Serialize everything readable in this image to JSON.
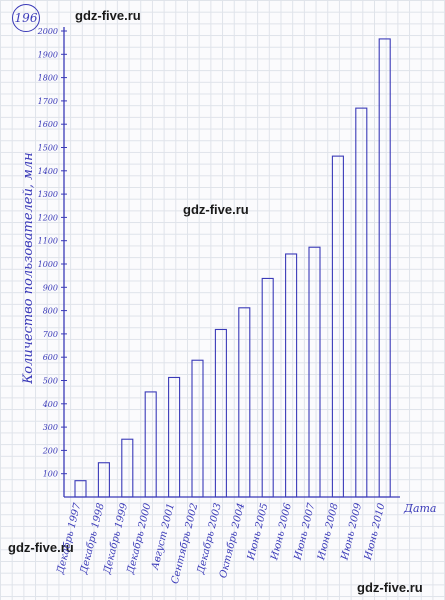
{
  "problem_number": "196",
  "watermarks": [
    "gdz-five.ru",
    "gdz-five.ru",
    "gdz-five.ru",
    "gdz-five.ru"
  ],
  "colors": {
    "ink": "#3a3ab8",
    "grid": "#dfe3ea"
  },
  "chart_data": {
    "type": "bar",
    "ylabel": "Количество пользователей, млн",
    "xlabel": "Дата",
    "ylim": [
      0,
      2000
    ],
    "y_ticks": [
      "100",
      "200",
      "300",
      "400",
      "500",
      "600",
      "700",
      "800",
      "900",
      "1000",
      "1100",
      "1200",
      "1300",
      "1400",
      "1500",
      "1600",
      "1700",
      "1800",
      "1900",
      "2000"
    ],
    "categories": [
      "Декабрь 1997",
      "Декабрь 1998",
      "Декабрь 1999",
      "Декабрь 2000",
      "Август 2001",
      "Сентябрь 2002",
      "Декабрь 2003",
      "Октябрь 2004",
      "Июнь 2005",
      "Июнь 2006",
      "Июнь 2007",
      "Июнь 2008",
      "Июнь 2009",
      "Июнь 2010"
    ],
    "values": [
      70,
      147,
      248,
      451,
      513,
      587,
      719,
      812,
      938,
      1043,
      1072,
      1463,
      1669,
      1966
    ],
    "grid": true
  }
}
